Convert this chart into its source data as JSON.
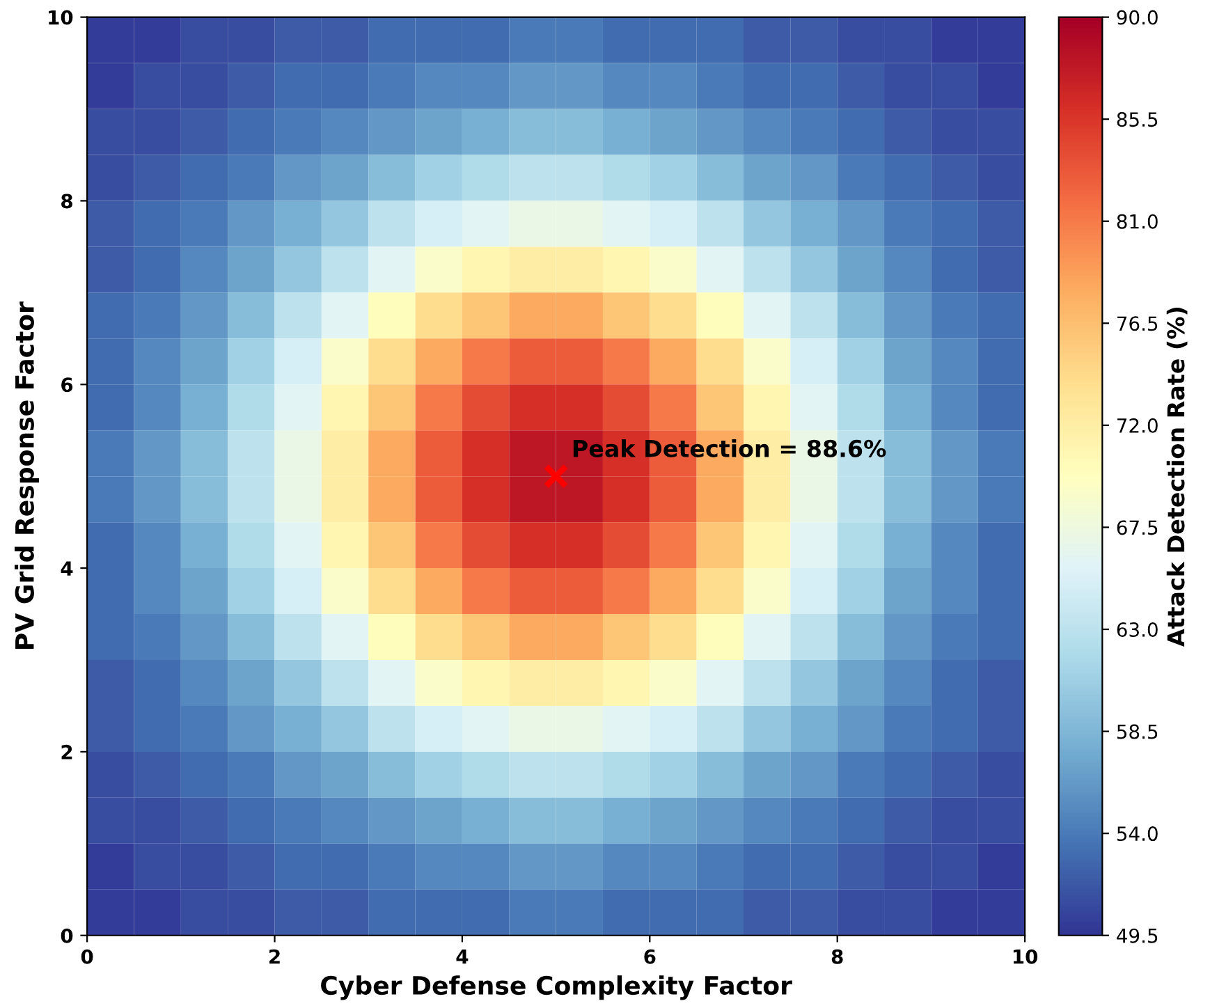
{
  "chart_data": {
    "type": "heatmap",
    "xlabel": "Cyber Defense Complexity Factor",
    "ylabel": "PV Grid Response Factor",
    "clabel": "Attack Detection Rate (%)",
    "xlim": [
      0,
      10
    ],
    "ylim": [
      0,
      10
    ],
    "xticks": [
      0,
      2,
      4,
      6,
      8,
      10
    ],
    "yticks": [
      0,
      2,
      4,
      6,
      8,
      10
    ],
    "clim": [
      49.5,
      90
    ],
    "cticks": [
      49.5,
      {
        "value": 54,
        "label": "54.0"
      },
      58.5,
      {
        "value": 63,
        "label": "63.0"
      },
      67.5,
      {
        "value": 72,
        "label": "72.0"
      },
      76.5,
      {
        "value": 81,
        "label": "81.0"
      },
      85.5,
      {
        "value": 90,
        "label": "90.0"
      }
    ],
    "cells": [
      [
        50,
        50,
        51,
        51,
        52,
        52,
        53,
        53,
        53,
        54,
        54,
        53,
        53,
        53,
        52,
        52,
        51,
        51,
        50,
        50
      ],
      [
        50,
        51,
        51,
        52,
        53,
        53,
        54,
        55,
        55,
        56,
        56,
        55,
        55,
        54,
        53,
        53,
        52,
        51,
        51,
        50
      ],
      [
        51,
        51,
        52,
        53,
        54,
        55,
        56,
        57,
        58,
        59,
        59,
        58,
        57,
        56,
        55,
        54,
        53,
        52,
        51,
        51
      ],
      [
        51,
        52,
        53,
        54,
        56,
        57,
        59,
        61,
        62,
        63,
        63,
        62,
        61,
        59,
        57,
        56,
        54,
        53,
        52,
        51
      ],
      [
        52,
        53,
        54,
        56,
        58,
        60,
        63,
        65,
        66,
        67,
        67,
        66,
        65,
        63,
        60,
        58,
        56,
        54,
        53,
        52
      ],
      [
        52,
        53,
        55,
        57,
        60,
        63,
        66,
        69,
        71,
        72,
        72,
        71,
        69,
        66,
        63,
        60,
        57,
        55,
        53,
        52
      ],
      [
        53,
        54,
        56,
        59,
        63,
        66,
        70,
        74,
        76,
        78,
        78,
        76,
        74,
        70,
        66,
        63,
        59,
        56,
        54,
        53
      ],
      [
        53,
        55,
        57,
        61,
        65,
        69,
        74,
        78,
        81,
        83,
        83,
        81,
        78,
        74,
        69,
        65,
        61,
        57,
        55,
        53
      ],
      [
        53,
        55,
        58,
        62,
        66,
        71,
        76,
        81,
        84,
        86,
        86,
        84,
        81,
        76,
        71,
        66,
        62,
        58,
        55,
        53
      ],
      [
        54,
        56,
        59,
        63,
        67,
        72,
        78,
        83,
        86,
        88,
        88,
        86,
        83,
        78,
        72,
        67,
        63,
        59,
        56,
        54
      ],
      [
        54,
        56,
        59,
        63,
        67,
        72,
        78,
        83,
        86,
        88,
        88,
        86,
        83,
        78,
        72,
        67,
        63,
        59,
        56,
        54
      ],
      [
        53,
        55,
        58,
        62,
        66,
        71,
        76,
        81,
        84,
        86,
        86,
        84,
        81,
        76,
        71,
        66,
        62,
        58,
        55,
        53
      ],
      [
        53,
        55,
        57,
        61,
        65,
        69,
        74,
        78,
        81,
        83,
        83,
        81,
        78,
        74,
        69,
        65,
        61,
        57,
        55,
        53
      ],
      [
        53,
        54,
        56,
        59,
        63,
        66,
        70,
        74,
        76,
        78,
        78,
        76,
        74,
        70,
        66,
        63,
        59,
        56,
        54,
        53
      ],
      [
        52,
        53,
        55,
        57,
        60,
        63,
        66,
        69,
        71,
        72,
        72,
        71,
        69,
        66,
        63,
        60,
        57,
        55,
        53,
        52
      ],
      [
        52,
        53,
        54,
        56,
        58,
        60,
        63,
        65,
        66,
        67,
        67,
        66,
        65,
        63,
        60,
        58,
        56,
        54,
        53,
        52
      ],
      [
        51,
        52,
        53,
        54,
        56,
        57,
        59,
        61,
        62,
        63,
        63,
        62,
        61,
        59,
        57,
        56,
        54,
        53,
        52,
        51
      ],
      [
        51,
        51,
        52,
        53,
        54,
        55,
        56,
        57,
        58,
        59,
        59,
        58,
        57,
        56,
        55,
        54,
        53,
        52,
        51,
        51
      ],
      [
        50,
        51,
        51,
        52,
        53,
        53,
        54,
        55,
        55,
        56,
        56,
        55,
        55,
        54,
        53,
        53,
        52,
        51,
        51,
        50
      ],
      [
        50,
        50,
        51,
        51,
        52,
        52,
        53,
        53,
        53,
        54,
        54,
        53,
        53,
        53,
        52,
        52,
        51,
        51,
        50,
        50
      ]
    ],
    "annotations": [
      {
        "text": "Peak Detection = 88.6%",
        "x": 5,
        "y": 5
      }
    ]
  }
}
